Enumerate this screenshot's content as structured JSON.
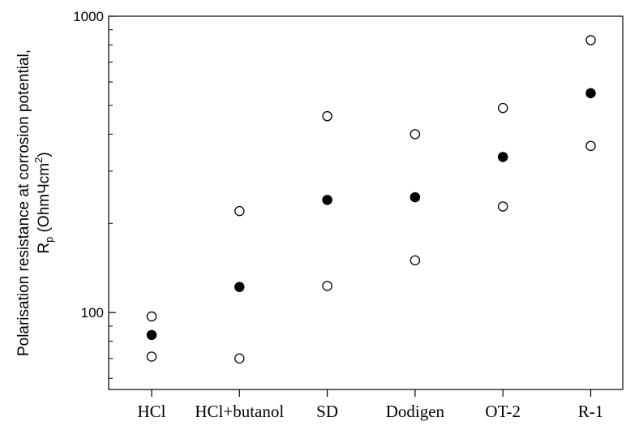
{
  "chart_data": {
    "type": "scatter",
    "categories": [
      "HCl",
      "HCl+butanol",
      "SD",
      "Dodigen",
      "OT-2",
      "R-1"
    ],
    "y_scale": "log",
    "ylim": [
      55,
      1000
    ],
    "y_ticks": [
      100,
      1000
    ],
    "y_tick_labels": [
      "100",
      "1000"
    ],
    "ylabel": {
      "line1": "Polarisation resistance at corrosion potential,",
      "r": "R",
      "sub": "p",
      "unit_open": " (Ohm",
      "dot": "Ч",
      "unit_cm": "cm",
      "sup": "2",
      "unit_close": ")"
    },
    "xlabel": "",
    "grid": false,
    "series": [
      {
        "marker": "filled-circle",
        "values": [
          84,
          122,
          240,
          245,
          335,
          550
        ]
      },
      {
        "marker": "open-circle",
        "values": [
          97,
          220,
          460,
          400,
          490,
          830
        ]
      },
      {
        "marker": "open-circle",
        "values": [
          71,
          70,
          123,
          150,
          228,
          365
        ]
      }
    ],
    "colors": {
      "axis": "#000000",
      "marker_fill": "#000000",
      "open_marker_fill": "#ffffff"
    }
  }
}
